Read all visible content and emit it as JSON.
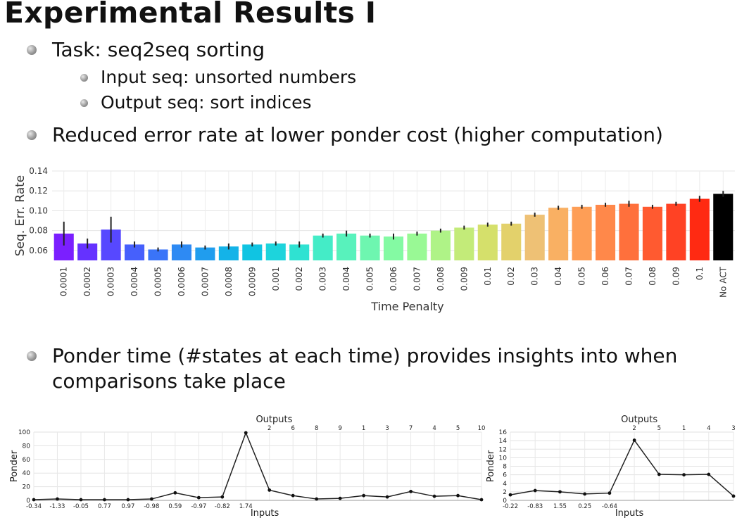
{
  "slide": {
    "title": "Experimental Results I",
    "bullets": [
      "Task: seq2seq sorting",
      "Input seq: unsorted numbers",
      "Output seq: sort indices",
      "Reduced error rate at lower ponder cost (higher computation)",
      "Ponder time (#states at each time) provides insights into when comparisons take place"
    ],
    "bullet_lines": {
      "b5_line1": "Ponder time (#states at each time) provides insights into when",
      "b5_line2": "comparisons take place"
    }
  },
  "chart_data": [
    {
      "type": "bar",
      "title": "",
      "xlabel": "Time Penalty",
      "ylabel": "Seq. Err. Rate",
      "ylim": [
        0.05,
        0.14
      ],
      "yticks": [
        "0.06",
        "0.08",
        "0.10",
        "0.12",
        "0.14"
      ],
      "grid": true,
      "categories": [
        "0.0001",
        "0.0002",
        "0.0003",
        "0.0004",
        "0.0005",
        "0.0006",
        "0.0007",
        "0.0008",
        "0.0009",
        "0.001",
        "0.002",
        "0.003",
        "0.004",
        "0.005",
        "0.006",
        "0.007",
        "0.008",
        "0.009",
        "0.01",
        "0.02",
        "0.03",
        "0.04",
        "0.05",
        "0.06",
        "0.07",
        "0.08",
        "0.09",
        "0.1",
        "No ACT"
      ],
      "values": [
        0.077,
        0.067,
        0.081,
        0.066,
        0.061,
        0.066,
        0.063,
        0.064,
        0.066,
        0.067,
        0.066,
        0.075,
        0.077,
        0.075,
        0.074,
        0.077,
        0.08,
        0.083,
        0.086,
        0.087,
        0.096,
        0.103,
        0.104,
        0.106,
        0.107,
        0.104,
        0.107,
        0.112,
        0.117
      ],
      "errors": [
        0.012,
        0.005,
        0.013,
        0.003,
        0.002,
        0.003,
        0.002,
        0.003,
        0.002,
        0.002,
        0.003,
        0.002,
        0.003,
        0.002,
        0.003,
        0.002,
        0.002,
        0.002,
        0.002,
        0.002,
        0.002,
        0.002,
        0.002,
        0.002,
        0.003,
        0.002,
        0.002,
        0.003,
        0.003
      ],
      "colors": [
        "#7b1fff",
        "#6532ff",
        "#5748ff",
        "#4660fc",
        "#3a74f8",
        "#2e8af3",
        "#209dee",
        "#14b3e8",
        "#10c4e2",
        "#1dd4dc",
        "#2fe2d2",
        "#44ecc7",
        "#58f2bc",
        "#6ef6b0",
        "#84faa3",
        "#99f995",
        "#aff387",
        "#c3eb79",
        "#d5e06b",
        "#e3d16b",
        "#eec175",
        "#f9b063",
        "#fe9e56",
        "#ff884a",
        "#ff703c",
        "#ff5a30",
        "#ff4224",
        "#ff2a12",
        "#000000"
      ]
    },
    {
      "type": "line",
      "title": "",
      "xlabel": "Inputs",
      "ylabel": "Ponder",
      "top_axis_label": "Outputs",
      "ylim": [
        0,
        100
      ],
      "yticks": [
        "0",
        "20",
        "40",
        "60",
        "80",
        "100"
      ],
      "grid": true,
      "input_labels": [
        "-0.34",
        "-1.33",
        "-0.05",
        "0.77",
        "0.97",
        "-0.98",
        "0.59",
        "-0.97",
        "-0.82",
        "1.74"
      ],
      "output_labels": [
        "2",
        "6",
        "8",
        "9",
        "1",
        "3",
        "7",
        "4",
        "5",
        "10"
      ],
      "values": [
        1,
        2,
        1,
        1,
        1,
        2,
        11,
        4,
        5,
        99,
        15,
        7,
        2,
        3,
        7,
        5,
        13,
        6,
        7,
        1
      ]
    },
    {
      "type": "line",
      "title": "",
      "xlabel": "Inputs",
      "ylabel": "Ponder",
      "top_axis_label": "Outputs",
      "ylim": [
        0,
        16
      ],
      "yticks": [
        "0",
        "2",
        "4",
        "6",
        "8",
        "10",
        "12",
        "14",
        "16"
      ],
      "grid": true,
      "input_labels": [
        "-0.22",
        "-0.83",
        "1.55",
        "0.25",
        "-0.64"
      ],
      "output_labels": [
        "2",
        "5",
        "1",
        "4",
        "3"
      ],
      "values": [
        1.3,
        2.3,
        2,
        1.5,
        1.7,
        14.1,
        6.1,
        6,
        6.1,
        1
      ]
    }
  ]
}
